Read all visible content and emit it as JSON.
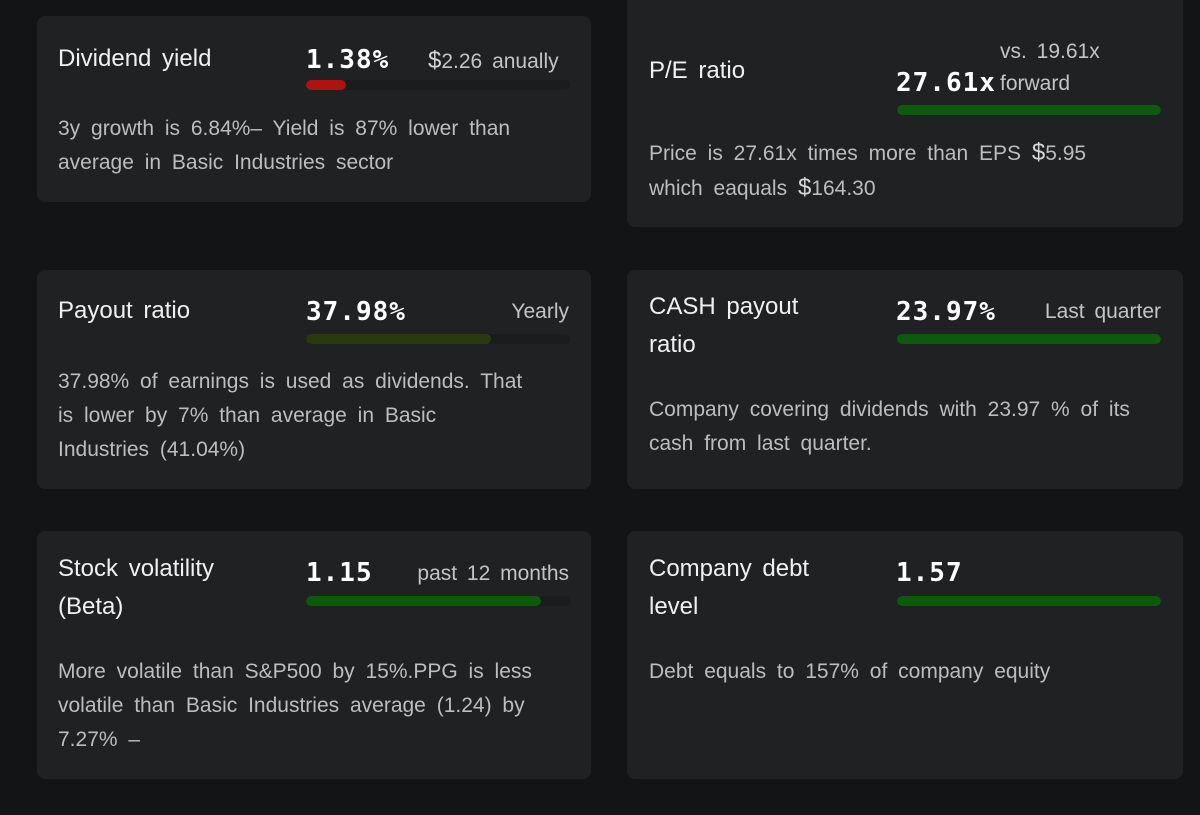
{
  "colors": {
    "red_fill": "#b01212",
    "green_fill": "#0d5a0d",
    "olive_fill": "#2b3a0c",
    "card_bg": "#202123"
  },
  "cards": {
    "dividend_yield": {
      "title": "Dividend yield",
      "value": "1.38%",
      "currency_symbol": "$",
      "amount": "2.26",
      "period": "anually",
      "bar_fill_percent": 15,
      "description": "3y growth is 6.84%– Yield is 87% lower than average in Basic Industries sector"
    },
    "pe_ratio": {
      "title": "P/E ratio",
      "compare": "vs. 19.61x",
      "value": "27.61x",
      "period": "forward",
      "bar_fill_percent": 100,
      "description_pre": "Price is 27.61x times more than EPS",
      "eps_symbol": "$",
      "eps_amount": "5.95",
      "description_mid": "which eaquals",
      "price_symbol": "$",
      "price_amount": "164.30"
    },
    "payout_ratio": {
      "title": "Payout ratio",
      "value": "37.98%",
      "period": "Yearly",
      "bar_fill_percent": 70,
      "description": "37.98% of earnings is used as dividends. That is lower by 7% than average in Basic Industries (41.04%)"
    },
    "cash_payout_ratio": {
      "title": "CASH payout ratio",
      "value": "23.97%",
      "period": "Last quarter",
      "bar_fill_percent": 100,
      "description": "Company covering dividends with 23.97 % of its cash from last quarter."
    },
    "stock_volatility": {
      "title": "Stock volatility (Beta)",
      "value": "1.15",
      "period": "past 12 months",
      "bar_fill_percent": 89,
      "description": "More volatile than S&P500 by 15%.PPG is less volatile than Basic Industries average (1.24) by 7.27% –"
    },
    "company_debt": {
      "title": "Company debt level",
      "value": "1.57",
      "bar_fill_percent": 100,
      "description": "Debt equals to 157% of company equity"
    }
  }
}
